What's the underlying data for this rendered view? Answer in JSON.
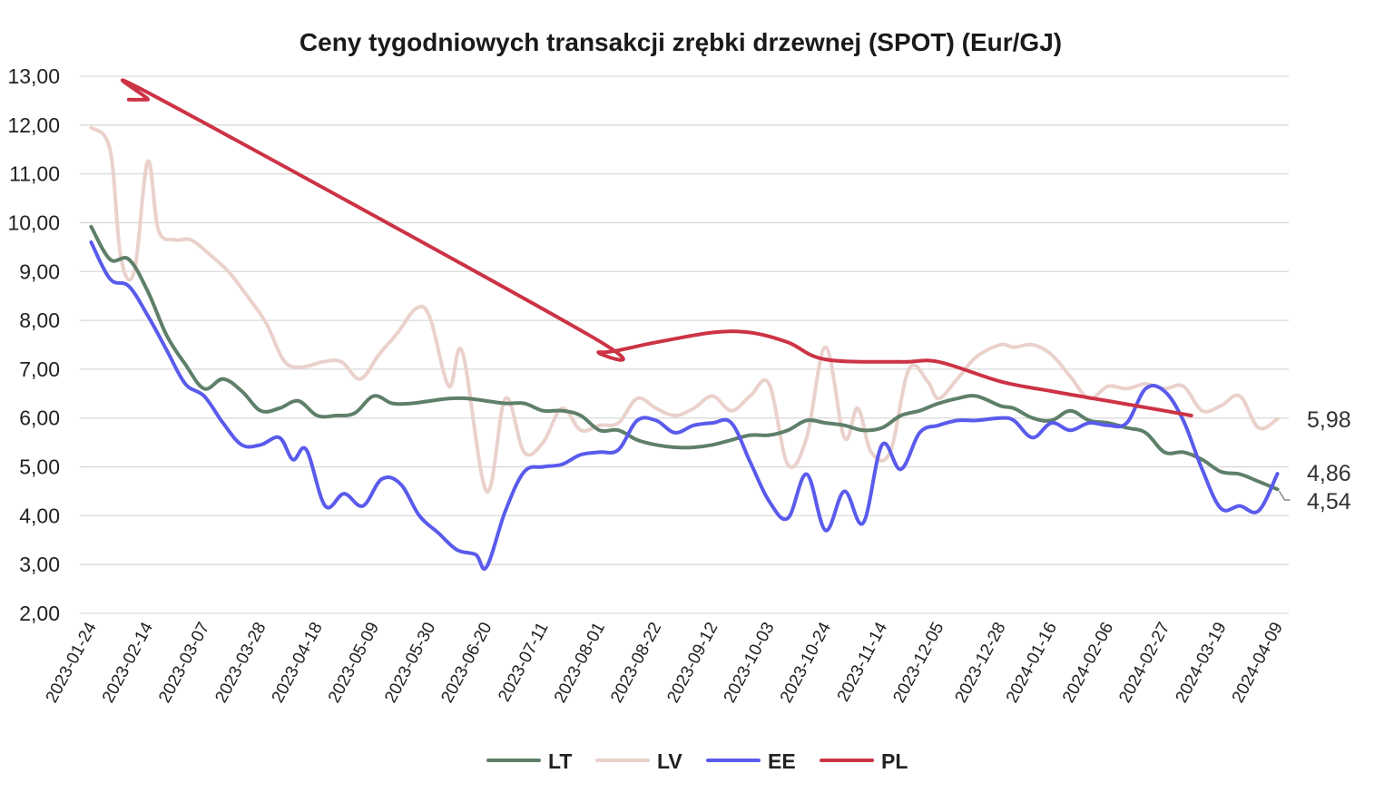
{
  "chart_data": {
    "type": "line",
    "title": "Ceny tygodniowych transakcji zrębki drzewnej (SPOT) (Eur/GJ)",
    "xlabel": "",
    "ylabel": "",
    "ylim": [
      2,
      13
    ],
    "y_ticks": [
      "2,00",
      "3,00",
      "4,00",
      "5,00",
      "6,00",
      "7,00",
      "8,00",
      "9,00",
      "10,00",
      "11,00",
      "12,00",
      "13,00"
    ],
    "x_ticks": [
      "2023-01-24",
      "2023-02-14",
      "2023-03-07",
      "2023-03-28",
      "2023-04-18",
      "2023-05-09",
      "2023-05-30",
      "2023-06-20",
      "2023-07-11",
      "2023-08-01",
      "2023-08-22",
      "2023-09-12",
      "2023-10-03",
      "2023-10-24",
      "2023-11-14",
      "2023-12-05",
      "2023-12-28",
      "2024-01-16",
      "2024-02-06",
      "2024-02-27",
      "2024-03-19",
      "2024-04-09"
    ],
    "grid": true,
    "legend": "bottom-center",
    "series": [
      {
        "name": "LT",
        "color": "#5e7f68",
        "points": [
          [
            "2023-01-24",
            9.92
          ],
          [
            "2023-01-31",
            9.25
          ],
          [
            "2023-02-07",
            9.25
          ],
          [
            "2023-02-14",
            8.6
          ],
          [
            "2023-02-21",
            7.7
          ],
          [
            "2023-02-28",
            7.1
          ],
          [
            "2023-03-07",
            6.6
          ],
          [
            "2023-03-14",
            6.8
          ],
          [
            "2023-03-21",
            6.55
          ],
          [
            "2023-03-28",
            6.15
          ],
          [
            "2023-04-04",
            6.2
          ],
          [
            "2023-04-11",
            6.35
          ],
          [
            "2023-04-18",
            6.05
          ],
          [
            "2023-04-25",
            6.05
          ],
          [
            "2023-05-02",
            6.1
          ],
          [
            "2023-05-09",
            6.45
          ],
          [
            "2023-05-16",
            6.3
          ],
          [
            "2023-05-23",
            6.3
          ],
          [
            "2023-05-30",
            6.35
          ],
          [
            "2023-06-06",
            6.4
          ],
          [
            "2023-06-13",
            6.4
          ],
          [
            "2023-06-20",
            6.35
          ],
          [
            "2023-06-27",
            6.3
          ],
          [
            "2023-07-04",
            6.3
          ],
          [
            "2023-07-11",
            6.15
          ],
          [
            "2023-07-18",
            6.15
          ],
          [
            "2023-07-25",
            6.05
          ],
          [
            "2023-08-01",
            5.75
          ],
          [
            "2023-08-08",
            5.75
          ],
          [
            "2023-08-15",
            5.55
          ],
          [
            "2023-08-22",
            5.45
          ],
          [
            "2023-08-29",
            5.4
          ],
          [
            "2023-09-05",
            5.4
          ],
          [
            "2023-09-12",
            5.45
          ],
          [
            "2023-09-19",
            5.55
          ],
          [
            "2023-09-26",
            5.65
          ],
          [
            "2023-10-03",
            5.65
          ],
          [
            "2023-10-10",
            5.75
          ],
          [
            "2023-10-17",
            5.95
          ],
          [
            "2023-10-24",
            5.9
          ],
          [
            "2023-10-31",
            5.85
          ],
          [
            "2023-11-07",
            5.75
          ],
          [
            "2023-11-14",
            5.8
          ],
          [
            "2023-11-21",
            6.05
          ],
          [
            "2023-11-28",
            6.15
          ],
          [
            "2023-12-05",
            6.3
          ],
          [
            "2023-12-12",
            6.4
          ],
          [
            "2023-12-19",
            6.45
          ],
          [
            "2023-12-28",
            6.25
          ],
          [
            "2024-01-02",
            6.2
          ],
          [
            "2024-01-09",
            6.0
          ],
          [
            "2024-01-16",
            5.95
          ],
          [
            "2024-01-23",
            6.15
          ],
          [
            "2024-01-30",
            5.95
          ],
          [
            "2024-02-06",
            5.9
          ],
          [
            "2024-02-13",
            5.8
          ],
          [
            "2024-02-20",
            5.7
          ],
          [
            "2024-02-27",
            5.3
          ],
          [
            "2024-03-05",
            5.3
          ],
          [
            "2024-03-12",
            5.15
          ],
          [
            "2024-03-19",
            4.9
          ],
          [
            "2024-03-26",
            4.85
          ],
          [
            "2024-04-02",
            4.7
          ],
          [
            "2024-04-09",
            4.54
          ]
        ]
      },
      {
        "name": "LV",
        "color": "#ead1cb",
        "points": [
          [
            "2023-01-24",
            11.95
          ],
          [
            "2023-01-31",
            11.5
          ],
          [
            "2023-02-04",
            9.3
          ],
          [
            "2023-02-09",
            9.0
          ],
          [
            "2023-02-14",
            11.25
          ],
          [
            "2023-02-18",
            9.85
          ],
          [
            "2023-02-24",
            9.65
          ],
          [
            "2023-03-02",
            9.65
          ],
          [
            "2023-03-09",
            9.35
          ],
          [
            "2023-03-16",
            9.0
          ],
          [
            "2023-03-23",
            8.5
          ],
          [
            "2023-03-30",
            7.95
          ],
          [
            "2023-04-06",
            7.15
          ],
          [
            "2023-04-13",
            7.05
          ],
          [
            "2023-04-20",
            7.15
          ],
          [
            "2023-04-27",
            7.15
          ],
          [
            "2023-05-04",
            6.8
          ],
          [
            "2023-05-11",
            7.3
          ],
          [
            "2023-05-18",
            7.75
          ],
          [
            "2023-05-25",
            8.25
          ],
          [
            "2023-05-30",
            8.05
          ],
          [
            "2023-06-06",
            6.65
          ],
          [
            "2023-06-11",
            7.35
          ],
          [
            "2023-06-20",
            4.5
          ],
          [
            "2023-06-27",
            6.4
          ],
          [
            "2023-07-04",
            5.3
          ],
          [
            "2023-07-11",
            5.5
          ],
          [
            "2023-07-18",
            6.2
          ],
          [
            "2023-07-25",
            5.75
          ],
          [
            "2023-08-01",
            5.85
          ],
          [
            "2023-08-08",
            5.9
          ],
          [
            "2023-08-15",
            6.4
          ],
          [
            "2023-08-22",
            6.2
          ],
          [
            "2023-08-29",
            6.05
          ],
          [
            "2023-09-05",
            6.2
          ],
          [
            "2023-09-12",
            6.45
          ],
          [
            "2023-09-19",
            6.15
          ],
          [
            "2023-09-26",
            6.45
          ],
          [
            "2023-10-03",
            6.7
          ],
          [
            "2023-10-10",
            5.05
          ],
          [
            "2023-10-17",
            5.6
          ],
          [
            "2023-10-24",
            7.45
          ],
          [
            "2023-10-31",
            5.6
          ],
          [
            "2023-11-05",
            6.2
          ],
          [
            "2023-11-10",
            5.3
          ],
          [
            "2023-11-17",
            5.3
          ],
          [
            "2023-11-24",
            7.0
          ],
          [
            "2023-12-01",
            6.75
          ],
          [
            "2023-12-05",
            6.4
          ],
          [
            "2023-12-12",
            6.8
          ],
          [
            "2023-12-19",
            7.25
          ],
          [
            "2023-12-28",
            7.5
          ],
          [
            "2024-01-02",
            7.45
          ],
          [
            "2024-01-09",
            7.5
          ],
          [
            "2024-01-16",
            7.3
          ],
          [
            "2024-01-23",
            6.85
          ],
          [
            "2024-01-30",
            6.4
          ],
          [
            "2024-02-06",
            6.65
          ],
          [
            "2024-02-13",
            6.6
          ],
          [
            "2024-02-20",
            6.7
          ],
          [
            "2024-02-27",
            6.6
          ],
          [
            "2024-03-05",
            6.65
          ],
          [
            "2024-03-12",
            6.15
          ],
          [
            "2024-03-19",
            6.25
          ],
          [
            "2024-03-26",
            6.45
          ],
          [
            "2024-04-02",
            5.8
          ],
          [
            "2024-04-09",
            5.98
          ]
        ]
      },
      {
        "name": "EE",
        "color": "#5a5aec",
        "points": [
          [
            "2023-01-24",
            9.6
          ],
          [
            "2023-01-31",
            8.85
          ],
          [
            "2023-02-07",
            8.7
          ],
          [
            "2023-02-14",
            8.1
          ],
          [
            "2023-02-21",
            7.4
          ],
          [
            "2023-02-28",
            6.7
          ],
          [
            "2023-03-07",
            6.45
          ],
          [
            "2023-03-14",
            5.9
          ],
          [
            "2023-03-21",
            5.45
          ],
          [
            "2023-03-28",
            5.45
          ],
          [
            "2023-04-04",
            5.6
          ],
          [
            "2023-04-09",
            5.15
          ],
          [
            "2023-04-14",
            5.35
          ],
          [
            "2023-04-21",
            4.2
          ],
          [
            "2023-04-28",
            4.45
          ],
          [
            "2023-05-05",
            4.2
          ],
          [
            "2023-05-12",
            4.75
          ],
          [
            "2023-05-19",
            4.65
          ],
          [
            "2023-05-26",
            4.0
          ],
          [
            "2023-06-02",
            3.65
          ],
          [
            "2023-06-09",
            3.3
          ],
          [
            "2023-06-16",
            3.2
          ],
          [
            "2023-06-20",
            2.95
          ],
          [
            "2023-06-27",
            4.1
          ],
          [
            "2023-07-04",
            4.9
          ],
          [
            "2023-07-11",
            5.0
          ],
          [
            "2023-07-18",
            5.05
          ],
          [
            "2023-07-25",
            5.25
          ],
          [
            "2023-08-01",
            5.3
          ],
          [
            "2023-08-08",
            5.35
          ],
          [
            "2023-08-15",
            5.95
          ],
          [
            "2023-08-22",
            5.95
          ],
          [
            "2023-08-29",
            5.7
          ],
          [
            "2023-09-05",
            5.85
          ],
          [
            "2023-09-12",
            5.9
          ],
          [
            "2023-09-19",
            5.9
          ],
          [
            "2023-09-26",
            5.1
          ],
          [
            "2023-10-03",
            4.3
          ],
          [
            "2023-10-10",
            3.95
          ],
          [
            "2023-10-17",
            4.85
          ],
          [
            "2023-10-24",
            3.7
          ],
          [
            "2023-10-31",
            4.5
          ],
          [
            "2023-11-07",
            3.85
          ],
          [
            "2023-11-14",
            5.45
          ],
          [
            "2023-11-21",
            4.95
          ],
          [
            "2023-11-28",
            5.7
          ],
          [
            "2023-12-05",
            5.85
          ],
          [
            "2023-12-12",
            5.95
          ],
          [
            "2023-12-19",
            5.95
          ],
          [
            "2023-12-28",
            6.0
          ],
          [
            "2024-01-02",
            5.95
          ],
          [
            "2024-01-09",
            5.6
          ],
          [
            "2024-01-16",
            5.9
          ],
          [
            "2024-01-23",
            5.75
          ],
          [
            "2024-01-30",
            5.9
          ],
          [
            "2024-02-06",
            5.85
          ],
          [
            "2024-02-13",
            5.9
          ],
          [
            "2024-02-20",
            6.6
          ],
          [
            "2024-02-27",
            6.55
          ],
          [
            "2024-03-05",
            5.95
          ],
          [
            "2024-03-12",
            4.95
          ],
          [
            "2024-03-19",
            4.15
          ],
          [
            "2024-03-26",
            4.2
          ],
          [
            "2024-04-02",
            4.1
          ],
          [
            "2024-04-09",
            4.86
          ]
        ]
      },
      {
        "name": "PL",
        "color": "#cc3345",
        "points": [
          [
            "2023-02-07",
            12.52
          ],
          [
            "2023-02-14",
            12.52
          ],
          [
            "2023-02-18",
            12.55
          ],
          [
            "2023-07-28",
            7.7
          ],
          [
            "2023-08-01",
            7.35
          ],
          [
            "2023-08-22",
            7.55
          ],
          [
            "2023-09-12",
            7.75
          ],
          [
            "2023-09-26",
            7.75
          ],
          [
            "2023-10-10",
            7.55
          ],
          [
            "2023-10-24",
            7.2
          ],
          [
            "2023-11-21",
            7.15
          ],
          [
            "2023-12-05",
            7.15
          ],
          [
            "2023-12-28",
            6.75
          ],
          [
            "2024-01-16",
            6.55
          ],
          [
            "2024-02-06",
            6.35
          ],
          [
            "2024-02-27",
            6.15
          ],
          [
            "2024-03-08",
            6.05
          ]
        ]
      }
    ],
    "end_labels": [
      {
        "series": "LV",
        "text": "5,98",
        "value": 5.98
      },
      {
        "series": "EE",
        "text": "4,86",
        "value": 4.86
      },
      {
        "series": "LT",
        "text": "4,54",
        "value": 4.54
      }
    ]
  }
}
